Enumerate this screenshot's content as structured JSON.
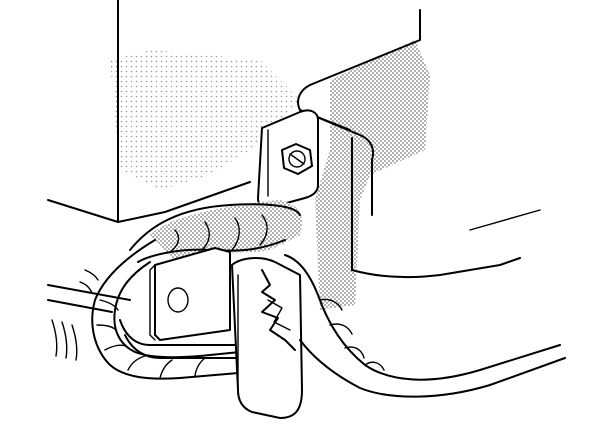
{
  "figure": {
    "description_visible_text": [],
    "colors": {
      "ink": "#000000",
      "paper": "#ffffff",
      "shade": "#9a9a9a"
    },
    "parts": [
      {
        "id": "housing",
        "icon": "engine-housing-icon"
      },
      {
        "id": "bracket",
        "icon": "mounting-bracket-icon"
      },
      {
        "id": "bolt",
        "icon": "bolt-head-icon"
      },
      {
        "id": "clamp-plate",
        "icon": "clamp-plate-icon"
      },
      {
        "id": "insulated-cable",
        "icon": "wrapped-cable-icon"
      },
      {
        "id": "tape-wrap",
        "icon": "insulation-tape-icon"
      },
      {
        "id": "rod",
        "icon": "rod-icon"
      }
    ]
  }
}
